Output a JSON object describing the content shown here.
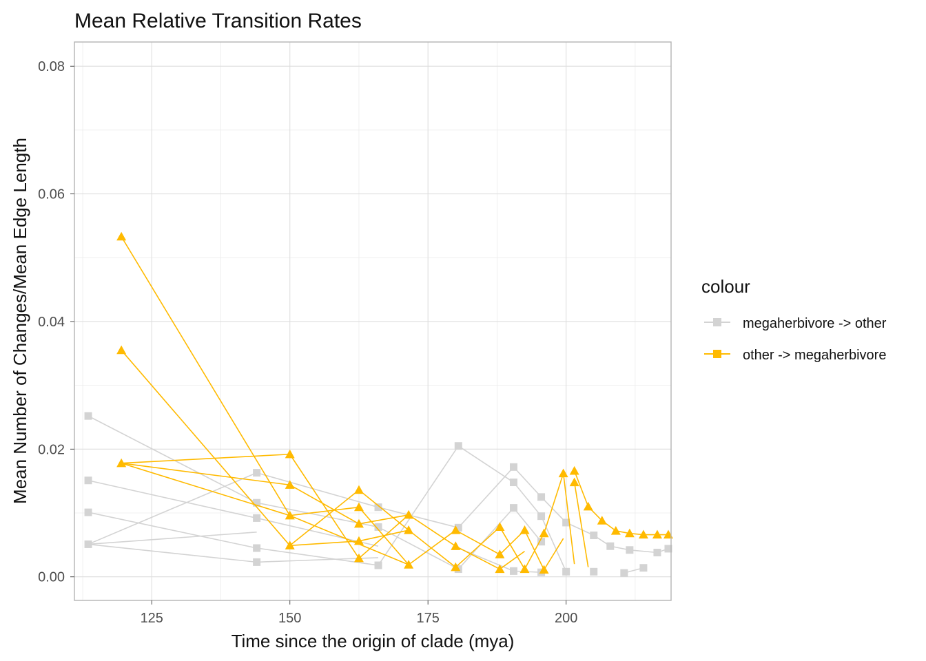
{
  "chart_data": {
    "type": "line",
    "title": "Mean Relative Transition Rates",
    "xlabel": "Time since the origin of clade (mya)",
    "ylabel": "Mean Number of Changes/Mean Edge Length",
    "xlim": [
      111.0,
      219.0
    ],
    "ylim": [
      -0.0037,
      0.0838
    ],
    "x_ticks": [
      125,
      150,
      175,
      200
    ],
    "x_tick_labels": [
      "125",
      "150",
      "175",
      "200"
    ],
    "y_ticks": [
      0.0,
      0.02,
      0.04,
      0.06,
      0.08
    ],
    "y_tick_labels": [
      "0.00",
      "0.02",
      "0.04",
      "0.06",
      "0.08"
    ],
    "grid": true,
    "legend": {
      "title": "colour",
      "position": "right",
      "entries": [
        "megaherbivore -> other",
        "other -> megaherbivore"
      ]
    },
    "series": [
      {
        "name": "megaherbivore -> other",
        "color": "#d3d3d3",
        "marker": "square",
        "x": [
          113.5,
          113.5,
          113.5,
          113.5,
          144.0,
          144.0,
          144.0,
          144.0,
          144.0,
          166.0,
          166.0,
          166.0,
          180.5,
          180.5,
          180.5,
          190.5,
          190.5,
          190.5,
          190.5,
          195.5,
          195.5,
          195.5,
          195.5,
          200.0,
          200.0,
          205.0,
          205.0,
          208.0,
          210.5,
          211.5,
          214.0,
          216.5,
          218.5
        ],
        "values": [
          0.0252,
          0.0151,
          0.0101,
          0.0051,
          0.0163,
          0.0116,
          0.0092,
          0.0045,
          0.0023,
          0.0109,
          0.0078,
          0.0018,
          0.0205,
          0.0077,
          0.0012,
          0.0172,
          0.0148,
          0.0108,
          0.0009,
          0.0125,
          0.0095,
          0.0055,
          0.0007,
          0.0085,
          0.0008,
          0.0065,
          0.0008,
          0.0048,
          0.0006,
          0.0042,
          0.0014,
          0.0038,
          0.0044
        ],
        "segments": [
          [
            [
              113.5,
              0.0252
            ],
            [
              144.0,
              0.0116
            ]
          ],
          [
            [
              113.5,
              0.0151
            ],
            [
              144.0,
              0.0092
            ]
          ],
          [
            [
              113.5,
              0.0101
            ],
            [
              144.0,
              0.0045
            ]
          ],
          [
            [
              113.5,
              0.0051
            ],
            [
              144.0,
              0.0163
            ]
          ],
          [
            [
              113.5,
              0.0051
            ],
            [
              144.0,
              0.0023
            ]
          ],
          [
            [
              113.5,
              0.0051
            ],
            [
              144.0,
              0.007
            ]
          ],
          [
            [
              144.0,
              0.0163
            ],
            [
              166.0,
              0.0109
            ]
          ],
          [
            [
              144.0,
              0.0116
            ],
            [
              166.0,
              0.0078
            ]
          ],
          [
            [
              144.0,
              0.0092
            ],
            [
              166.0,
              0.0048
            ]
          ],
          [
            [
              144.0,
              0.0045
            ],
            [
              166.0,
              0.0018
            ]
          ],
          [
            [
              144.0,
              0.0023
            ],
            [
              166.0,
              0.003
            ]
          ],
          [
            [
              166.0,
              0.0018
            ],
            [
              180.5,
              0.0205
            ]
          ],
          [
            [
              166.0,
              0.0109
            ],
            [
              180.5,
              0.0077
            ]
          ],
          [
            [
              166.0,
              0.0078
            ],
            [
              180.5,
              0.0012
            ]
          ],
          [
            [
              180.5,
              0.0205
            ],
            [
              190.5,
              0.0148
            ]
          ],
          [
            [
              180.5,
              0.0077
            ],
            [
              190.5,
              0.0172
            ]
          ],
          [
            [
              180.5,
              0.0012
            ],
            [
              190.5,
              0.0108
            ]
          ],
          [
            [
              180.5,
              0.0045
            ],
            [
              190.5,
              0.0009
            ]
          ],
          [
            [
              190.5,
              0.0172
            ],
            [
              195.5,
              0.0125
            ]
          ],
          [
            [
              190.5,
              0.0148
            ],
            [
              195.5,
              0.0095
            ]
          ],
          [
            [
              190.5,
              0.0108
            ],
            [
              195.5,
              0.0055
            ]
          ],
          [
            [
              190.5,
              0.0009
            ],
            [
              195.5,
              0.0007
            ]
          ],
          [
            [
              195.5,
              0.0125
            ],
            [
              200.0,
              0.0085
            ]
          ],
          [
            [
              195.5,
              0.0095
            ],
            [
              200.0,
              0.0008
            ]
          ],
          [
            [
              200.0,
              0.0085
            ],
            [
              205.0,
              0.0065
            ]
          ],
          [
            [
              205.0,
              0.0065
            ],
            [
              208.0,
              0.0048
            ]
          ],
          [
            [
              208.0,
              0.0048
            ],
            [
              211.5,
              0.0042
            ]
          ],
          [
            [
              210.5,
              0.0006
            ],
            [
              214.0,
              0.0014
            ]
          ],
          [
            [
              211.5,
              0.0042
            ],
            [
              216.5,
              0.0038
            ]
          ],
          [
            [
              216.5,
              0.0038
            ],
            [
              218.5,
              0.0044
            ]
          ]
        ]
      },
      {
        "name": "other -> megaherbivore",
        "color": "#ffba00",
        "marker": "triangle",
        "x": [
          119.5,
          119.5,
          119.5,
          150.0,
          150.0,
          150.0,
          150.0,
          162.5,
          162.5,
          162.5,
          162.5,
          162.5,
          171.5,
          171.5,
          171.5,
          180.0,
          180.0,
          180.0,
          188.0,
          188.0,
          188.0,
          192.5,
          192.5,
          196.0,
          196.0,
          199.5,
          201.5,
          201.5,
          204.0,
          206.5,
          209.0,
          211.5,
          214.0,
          216.5,
          218.5
        ],
        "values": [
          0.0533,
          0.0355,
          0.0178,
          0.0192,
          0.0144,
          0.0096,
          0.0049,
          0.0136,
          0.0109,
          0.0083,
          0.0056,
          0.0029,
          0.0097,
          0.0073,
          0.0019,
          0.0073,
          0.0048,
          0.0015,
          0.0078,
          0.0035,
          0.0012,
          0.0073,
          0.0012,
          0.0068,
          0.0011,
          0.0162,
          0.0166,
          0.0148,
          0.011,
          0.0088,
          0.0072,
          0.0068,
          0.0066,
          0.0066,
          0.0066
        ],
        "segments": [
          [
            [
              119.5,
              0.0533
            ],
            [
              150.0,
              0.0096
            ]
          ],
          [
            [
              119.5,
              0.0355
            ],
            [
              150.0,
              0.0049
            ]
          ],
          [
            [
              119.5,
              0.0178
            ],
            [
              150.0,
              0.0192
            ]
          ],
          [
            [
              119.5,
              0.0178
            ],
            [
              150.0,
              0.0144
            ]
          ],
          [
            [
              119.5,
              0.0178
            ],
            [
              150.0,
              0.0096
            ]
          ],
          [
            [
              150.0,
              0.0192
            ],
            [
              162.5,
              0.0029
            ]
          ],
          [
            [
              150.0,
              0.0144
            ],
            [
              162.5,
              0.0083
            ]
          ],
          [
            [
              150.0,
              0.0096
            ],
            [
              162.5,
              0.0109
            ]
          ],
          [
            [
              150.0,
              0.0049
            ],
            [
              162.5,
              0.0136
            ]
          ],
          [
            [
              150.0,
              0.0049
            ],
            [
              162.5,
              0.0056
            ]
          ],
          [
            [
              150.0,
              0.0096
            ],
            [
              171.5,
              0.0019
            ]
          ],
          [
            [
              162.5,
              0.0136
            ],
            [
              171.5,
              0.0073
            ]
          ],
          [
            [
              162.5,
              0.0109
            ],
            [
              171.5,
              0.0019
            ]
          ],
          [
            [
              162.5,
              0.0083
            ],
            [
              171.5,
              0.0097
            ]
          ],
          [
            [
              162.5,
              0.0056
            ],
            [
              171.5,
              0.0073
            ]
          ],
          [
            [
              162.5,
              0.0029
            ],
            [
              171.5,
              0.0097
            ]
          ],
          [
            [
              171.5,
              0.0097
            ],
            [
              180.0,
              0.0048
            ]
          ],
          [
            [
              171.5,
              0.0073
            ],
            [
              180.0,
              0.0015
            ]
          ],
          [
            [
              171.5,
              0.0019
            ],
            [
              180.0,
              0.0073
            ]
          ],
          [
            [
              180.0,
              0.0073
            ],
            [
              188.0,
              0.0035
            ]
          ],
          [
            [
              180.0,
              0.0048
            ],
            [
              188.0,
              0.0012
            ]
          ],
          [
            [
              180.0,
              0.0015
            ],
            [
              188.0,
              0.0078
            ]
          ],
          [
            [
              188.0,
              0.0078
            ],
            [
              192.5,
              0.0012
            ]
          ],
          [
            [
              188.0,
              0.0035
            ],
            [
              192.5,
              0.0073
            ]
          ],
          [
            [
              188.0,
              0.0012
            ],
            [
              192.5,
              0.004
            ]
          ],
          [
            [
              192.5,
              0.0073
            ],
            [
              196.0,
              0.0011
            ]
          ],
          [
            [
              192.5,
              0.0012
            ],
            [
              196.0,
              0.0068
            ]
          ],
          [
            [
              196.0,
              0.0068
            ],
            [
              199.5,
              0.0162
            ]
          ],
          [
            [
              196.0,
              0.0011
            ],
            [
              199.5,
              0.006
            ]
          ],
          [
            [
              199.5,
              0.0162
            ],
            [
              201.5,
              0.002
            ]
          ],
          [
            [
              201.5,
              0.0166
            ],
            [
              204.0,
              0.011
            ]
          ],
          [
            [
              201.5,
              0.0148
            ],
            [
              204.0,
              0.0015
            ]
          ],
          [
            [
              204.0,
              0.011
            ],
            [
              206.5,
              0.0088
            ]
          ],
          [
            [
              206.5,
              0.0088
            ],
            [
              209.0,
              0.0072
            ]
          ],
          [
            [
              209.0,
              0.0072
            ],
            [
              211.5,
              0.0068
            ]
          ],
          [
            [
              211.5,
              0.0068
            ],
            [
              214.0,
              0.0066
            ]
          ],
          [
            [
              214.0,
              0.0066
            ],
            [
              216.5,
              0.0066
            ]
          ],
          [
            [
              216.5,
              0.0066
            ],
            [
              218.5,
              0.0066
            ]
          ]
        ]
      }
    ]
  }
}
